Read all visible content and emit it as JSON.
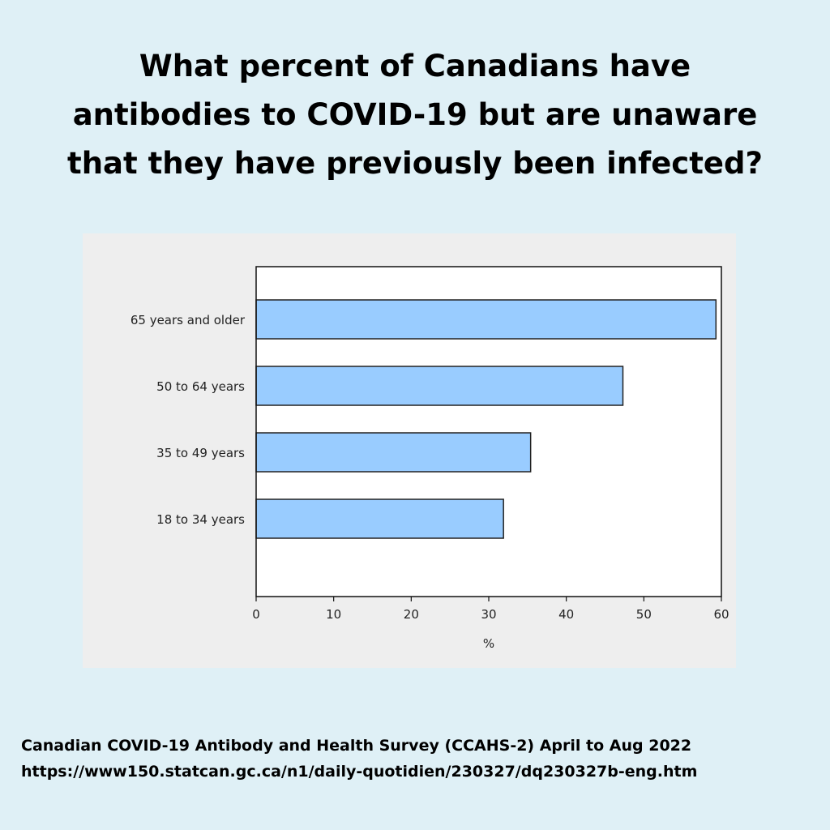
{
  "title_lines": [
    "What percent of Canadians have",
    "antibodies to COVID-19 but are unaware",
    "that they have previously been infected?"
  ],
  "source": {
    "line1": "Canadian COVID-19 Antibody and Health Survey (CCAHS-2) April to Aug 2022",
    "line2": "https://www150.statcan.gc.ca/n1/daily-quotidien/230327/dq230327b-eng.htm"
  },
  "colors": {
    "bar_fill": "#99ccff",
    "bar_stroke": "#222222",
    "plot_bg": "#ffffff",
    "panel_bg": "#eeeeee"
  },
  "chart_data": {
    "type": "bar",
    "orientation": "horizontal",
    "title": "What percent of Canadians have antibodies to COVID-19 but are unaware that they have previously been infected?",
    "categories": [
      "65 years and older",
      "50 to 64 years",
      "35 to 49 years",
      "18 to 34 years"
    ],
    "values": [
      59.3,
      47.3,
      35.4,
      31.9
    ],
    "xlabel": "%",
    "ylabel": "",
    "xlim": [
      0,
      60
    ],
    "xticks": [
      0,
      10,
      20,
      30,
      40,
      50,
      60
    ],
    "grid": false,
    "legend": "none"
  }
}
